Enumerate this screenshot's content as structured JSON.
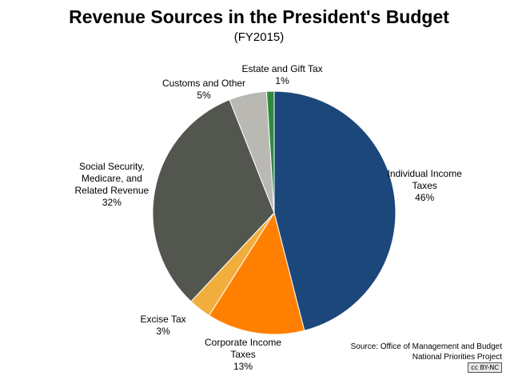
{
  "chart_data": {
    "type": "pie",
    "title": "Revenue Sources in the President's Budget",
    "subtitle": "(FY2015)",
    "slices": [
      {
        "lines": [
          "Individual  Income",
          "Taxes",
          "46%"
        ],
        "value": 46,
        "color": "#1b477b"
      },
      {
        "lines": [
          "Corporate  Income",
          "Taxes",
          "13%"
        ],
        "value": 13,
        "color": "#ff8000"
      },
      {
        "lines": [
          "Excise Tax",
          "3%"
        ],
        "value": 3,
        "color": "#f2ae3c"
      },
      {
        "lines": [
          "Social Security,",
          "Medicare, and",
          "Related  Revenue",
          "32%"
        ],
        "value": 32,
        "color": "#53554f"
      },
      {
        "lines": [
          "Customs and Other",
          "5%"
        ],
        "value": 5,
        "color": "#b9b8b3"
      },
      {
        "lines": [
          "Estate and Gift Tax",
          "1%"
        ],
        "value": 1,
        "color": "#2f8a3e"
      }
    ]
  },
  "source": {
    "line1": "Source: Office of Management and Budget",
    "line2": "National Priorities Project",
    "license": "cc BY-NC"
  }
}
